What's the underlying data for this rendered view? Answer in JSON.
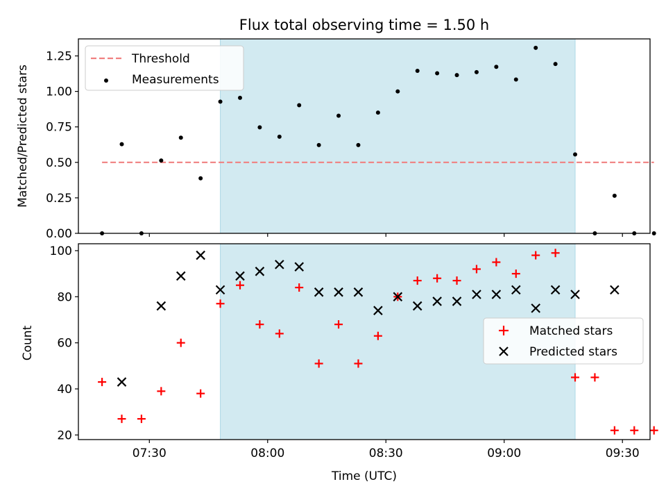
{
  "figure_title": "Flux total observing time = 1.50 h",
  "highlight_color": "#add8e6",
  "chart_data": [
    {
      "type": "scatter",
      "ylabel": "Matched/Predicted stars",
      "xlim": [
        "07:12",
        "09:37"
      ],
      "ylim": [
        0,
        1.37
      ],
      "yticks": [
        "0.00",
        "0.25",
        "0.50",
        "0.75",
        "1.00",
        "1.25"
      ],
      "highlight_span": [
        "07:48",
        "09:18"
      ],
      "legend_position": "upper left",
      "threshold": {
        "name": "Threshold",
        "y": 0.5,
        "x_range": [
          "07:18",
          "09:38"
        ],
        "color": "#f08080"
      },
      "series": [
        {
          "name": "Measurements",
          "color": "#000000",
          "marker": "dot",
          "points": [
            [
              "07:18",
              0.0
            ],
            [
              "07:23",
              0.628
            ],
            [
              "07:28",
              0.0
            ],
            [
              "07:33",
              0.513
            ],
            [
              "07:38",
              0.674
            ],
            [
              "07:43",
              0.388
            ],
            [
              "07:48",
              0.928
            ],
            [
              "07:53",
              0.955
            ],
            [
              "07:58",
              0.747
            ],
            [
              "08:03",
              0.681
            ],
            [
              "08:08",
              0.903
            ],
            [
              "08:13",
              0.622
            ],
            [
              "08:18",
              0.829
            ],
            [
              "08:23",
              0.622
            ],
            [
              "08:28",
              0.851
            ],
            [
              "08:33",
              1.0
            ],
            [
              "08:38",
              1.145
            ],
            [
              "08:43",
              1.128
            ],
            [
              "08:48",
              1.115
            ],
            [
              "08:53",
              1.136
            ],
            [
              "08:58",
              1.173
            ],
            [
              "09:03",
              1.084
            ],
            [
              "09:08",
              1.307
            ],
            [
              "09:13",
              1.193
            ],
            [
              "09:18",
              0.556
            ],
            [
              "09:23",
              0.0
            ],
            [
              "09:28",
              0.265
            ],
            [
              "09:33",
              0.0
            ],
            [
              "09:38",
              0.0
            ]
          ]
        }
      ]
    },
    {
      "type": "scatter",
      "xlabel": "Time (UTC)",
      "ylabel": "Count",
      "xlim": [
        "07:12",
        "09:37"
      ],
      "ylim": [
        18,
        103
      ],
      "xticks": [
        "07:30",
        "08:00",
        "08:30",
        "09:00",
        "09:30"
      ],
      "yticks": [
        "20",
        "40",
        "60",
        "80",
        "100"
      ],
      "highlight_span": [
        "07:48",
        "09:18"
      ],
      "legend_position": "center right",
      "series": [
        {
          "name": "Matched stars",
          "color": "#ff0000",
          "marker": "plus",
          "points": [
            [
              "07:18",
              43
            ],
            [
              "07:23",
              27
            ],
            [
              "07:28",
              27
            ],
            [
              "07:33",
              39
            ],
            [
              "07:38",
              60
            ],
            [
              "07:43",
              38
            ],
            [
              "07:48",
              77
            ],
            [
              "07:53",
              85
            ],
            [
              "07:58",
              68
            ],
            [
              "08:03",
              64
            ],
            [
              "08:08",
              84
            ],
            [
              "08:13",
              51
            ],
            [
              "08:18",
              68
            ],
            [
              "08:23",
              51
            ],
            [
              "08:28",
              63
            ],
            [
              "08:33",
              80
            ],
            [
              "08:38",
              87
            ],
            [
              "08:43",
              88
            ],
            [
              "08:48",
              87
            ],
            [
              "08:53",
              92
            ],
            [
              "08:58",
              95
            ],
            [
              "09:03",
              90
            ],
            [
              "09:08",
              98
            ],
            [
              "09:13",
              99
            ],
            [
              "09:18",
              45
            ],
            [
              "09:23",
              45
            ],
            [
              "09:28",
              22
            ],
            [
              "09:33",
              22
            ],
            [
              "09:38",
              22
            ]
          ]
        },
        {
          "name": "Predicted stars",
          "color": "#000000",
          "marker": "x",
          "points": [
            [
              "07:23",
              43
            ],
            [
              "07:33",
              76
            ],
            [
              "07:38",
              89
            ],
            [
              "07:43",
              98
            ],
            [
              "07:48",
              83
            ],
            [
              "07:53",
              89
            ],
            [
              "07:58",
              91
            ],
            [
              "08:03",
              94
            ],
            [
              "08:08",
              93
            ],
            [
              "08:13",
              82
            ],
            [
              "08:18",
              82
            ],
            [
              "08:23",
              82
            ],
            [
              "08:28",
              74
            ],
            [
              "08:33",
              80
            ],
            [
              "08:38",
              76
            ],
            [
              "08:43",
              78
            ],
            [
              "08:48",
              78
            ],
            [
              "08:53",
              81
            ],
            [
              "08:58",
              81
            ],
            [
              "09:03",
              83
            ],
            [
              "09:08",
              75
            ],
            [
              "09:13",
              83
            ],
            [
              "09:18",
              81
            ],
            [
              "09:28",
              83
            ]
          ]
        }
      ]
    }
  ]
}
